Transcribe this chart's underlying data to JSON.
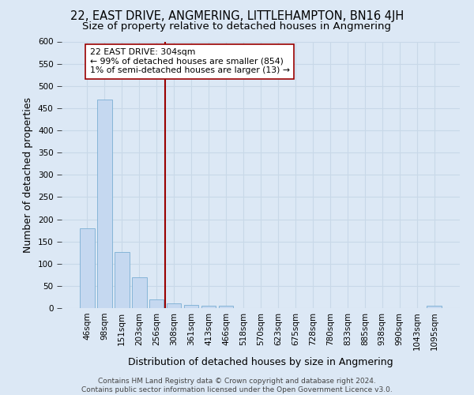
{
  "title": "22, EAST DRIVE, ANGMERING, LITTLEHAMPTON, BN16 4JH",
  "subtitle": "Size of property relative to detached houses in Angmering",
  "xlabel": "Distribution of detached houses by size in Angmering",
  "ylabel": "Number of detached properties",
  "footer_line1": "Contains HM Land Registry data © Crown copyright and database right 2024.",
  "footer_line2": "Contains public sector information licensed under the Open Government Licence v3.0.",
  "categories": [
    "46sqm",
    "98sqm",
    "151sqm",
    "203sqm",
    "256sqm",
    "308sqm",
    "361sqm",
    "413sqm",
    "466sqm",
    "518sqm",
    "570sqm",
    "623sqm",
    "675sqm",
    "728sqm",
    "780sqm",
    "833sqm",
    "885sqm",
    "938sqm",
    "990sqm",
    "1043sqm",
    "1095sqm"
  ],
  "values": [
    180,
    469,
    127,
    70,
    19,
    10,
    8,
    5,
    5,
    0,
    0,
    0,
    0,
    0,
    0,
    0,
    0,
    0,
    0,
    0,
    5
  ],
  "bar_color": "#c5d8f0",
  "bar_edge_color": "#7aafd4",
  "subject_line_color": "#990000",
  "annotation_text": "22 EAST DRIVE: 304sqm\n← 99% of detached houses are smaller (854)\n1% of semi-detached houses are larger (13) →",
  "annotation_box_color": "white",
  "annotation_box_edge_color": "#990000",
  "ylim": [
    0,
    600
  ],
  "yticks": [
    0,
    50,
    100,
    150,
    200,
    250,
    300,
    350,
    400,
    450,
    500,
    550,
    600
  ],
  "grid_color": "#c8d8e8",
  "background_color": "#dce8f5",
  "plot_bg_color": "#dce8f5",
  "title_fontsize": 10.5,
  "subtitle_fontsize": 9.5,
  "tick_fontsize": 7.5,
  "label_fontsize": 9,
  "footer_fontsize": 6.5
}
